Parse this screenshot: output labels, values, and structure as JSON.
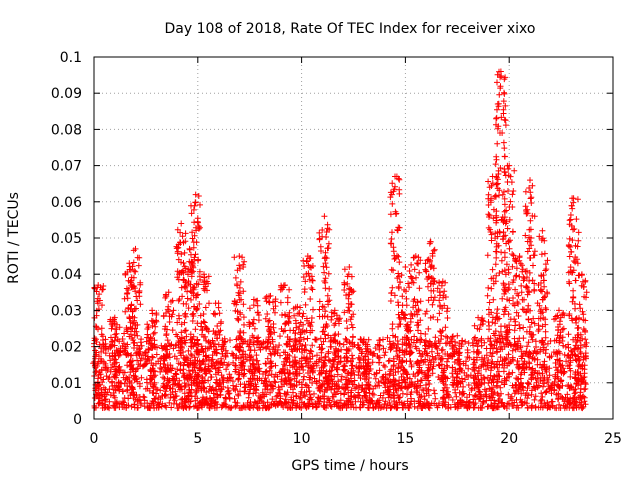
{
  "chart_data": {
    "type": "scatter",
    "title": "Day 108 of 2018, Rate Of TEC Index for receiver xixo",
    "xlabel": "GPS time / hours",
    "ylabel": "ROTI / TECUs",
    "xlim": [
      0,
      25
    ],
    "ylim": [
      0,
      0.1
    ],
    "x_ticks": [
      "0",
      "5",
      "10",
      "15",
      "20",
      "25"
    ],
    "y_ticks": [
      "0",
      "0.01",
      "0.02",
      "0.03",
      "0.04",
      "0.05",
      "0.06",
      "0.07",
      "0.08",
      "0.09",
      "0.1"
    ],
    "grid": true,
    "marker": "+",
    "color": "#ff0000",
    "series": [
      {
        "name": "ROTI",
        "baseline_range": [
          0.003,
          0.018
        ],
        "x_range": [
          0,
          23.7
        ],
        "bursts": [
          {
            "x": 0.2,
            "peak": 0.037
          },
          {
            "x": 1.0,
            "peak": 0.028
          },
          {
            "x": 1.7,
            "peak": 0.043
          },
          {
            "x": 2.0,
            "peak": 0.047
          },
          {
            "x": 2.8,
            "peak": 0.03
          },
          {
            "x": 3.6,
            "peak": 0.035
          },
          {
            "x": 4.2,
            "peak": 0.054
          },
          {
            "x": 4.6,
            "peak": 0.047
          },
          {
            "x": 4.9,
            "peak": 0.062
          },
          {
            "x": 5.3,
            "peak": 0.04
          },
          {
            "x": 6.0,
            "peak": 0.032
          },
          {
            "x": 7.0,
            "peak": 0.045
          },
          {
            "x": 7.7,
            "peak": 0.033
          },
          {
            "x": 8.5,
            "peak": 0.034
          },
          {
            "x": 9.2,
            "peak": 0.037
          },
          {
            "x": 9.8,
            "peak": 0.031
          },
          {
            "x": 10.3,
            "peak": 0.045
          },
          {
            "x": 11.1,
            "peak": 0.056
          },
          {
            "x": 11.6,
            "peak": 0.03
          },
          {
            "x": 12.3,
            "peak": 0.042
          },
          {
            "x": 13.0,
            "peak": 0.022
          },
          {
            "x": 14.5,
            "peak": 0.067
          },
          {
            "x": 15.0,
            "peak": 0.042
          },
          {
            "x": 15.5,
            "peak": 0.045
          },
          {
            "x": 16.2,
            "peak": 0.049
          },
          {
            "x": 16.8,
            "peak": 0.038
          },
          {
            "x": 17.5,
            "peak": 0.023
          },
          {
            "x": 18.5,
            "peak": 0.028
          },
          {
            "x": 19.2,
            "peak": 0.067
          },
          {
            "x": 19.6,
            "peak": 0.096
          },
          {
            "x": 20.0,
            "peak": 0.07
          },
          {
            "x": 20.5,
            "peak": 0.045
          },
          {
            "x": 21.0,
            "peak": 0.066
          },
          {
            "x": 21.6,
            "peak": 0.052
          },
          {
            "x": 22.4,
            "peak": 0.03
          },
          {
            "x": 23.1,
            "peak": 0.061
          },
          {
            "x": 23.5,
            "peak": 0.04
          }
        ]
      }
    ]
  }
}
